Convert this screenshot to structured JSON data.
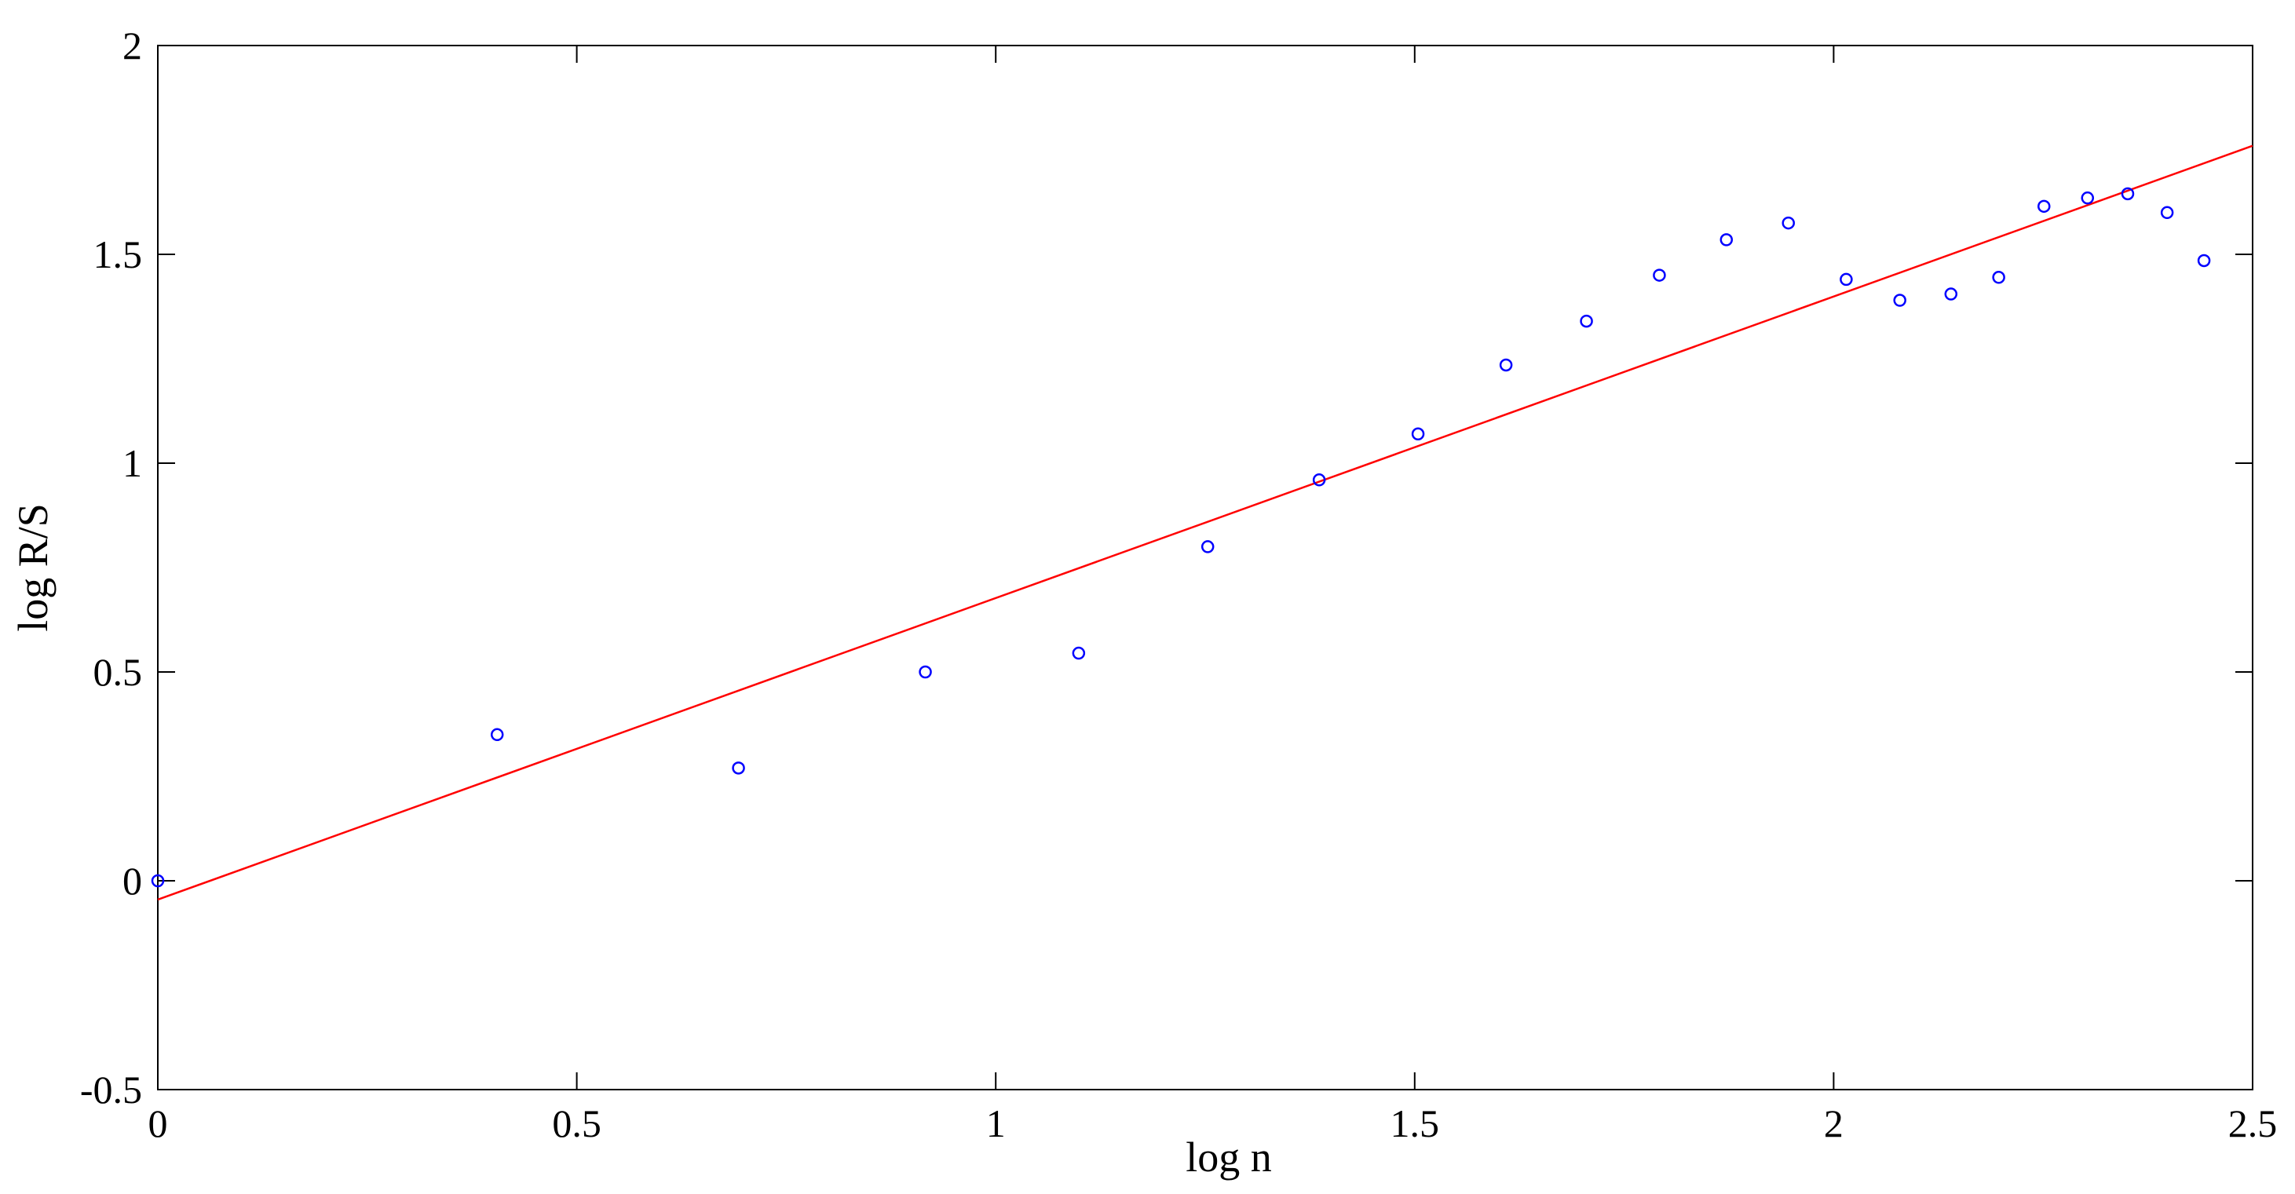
{
  "chart_data": {
    "type": "scatter",
    "title": "",
    "xlabel": "log n",
    "ylabel": "log R/S",
    "xlim": [
      0,
      2.5
    ],
    "ylim": [
      -0.5,
      2
    ],
    "xticks": [
      0,
      0.5,
      1,
      1.5,
      2,
      2.5
    ],
    "yticks": [
      -0.5,
      0,
      0.5,
      1,
      1.5,
      2
    ],
    "xtick_labels": [
      "0",
      "0.5",
      "1",
      "1.5",
      "2",
      "2.5"
    ],
    "ytick_labels": [
      "-0.5",
      "0",
      "0.5",
      "1",
      "1.5",
      "2"
    ],
    "grid": false,
    "legend": "none",
    "series": [
      {
        "kind": "points",
        "marker": "open-circle",
        "color": "#0000ff",
        "x": [
          0,
          0.405,
          0.693,
          0.916,
          1.099,
          1.253,
          1.386,
          1.504,
          1.609,
          1.705,
          1.792,
          1.872,
          1.946,
          2.015,
          2.079,
          2.14,
          2.197,
          2.251,
          2.303,
          2.351,
          2.398,
          2.442
        ],
        "y": [
          0,
          0.35,
          0.27,
          0.5,
          0.545,
          0.8,
          0.96,
          1.07,
          1.235,
          1.34,
          1.45,
          1.535,
          1.575,
          1.44,
          1.39,
          1.405,
          1.445,
          1.615,
          1.635,
          1.645,
          1.6,
          1.485
        ]
      },
      {
        "kind": "line",
        "color": "#ff0000",
        "x": [
          0,
          2.5
        ],
        "y": [
          -0.045,
          1.76
        ]
      }
    ]
  }
}
